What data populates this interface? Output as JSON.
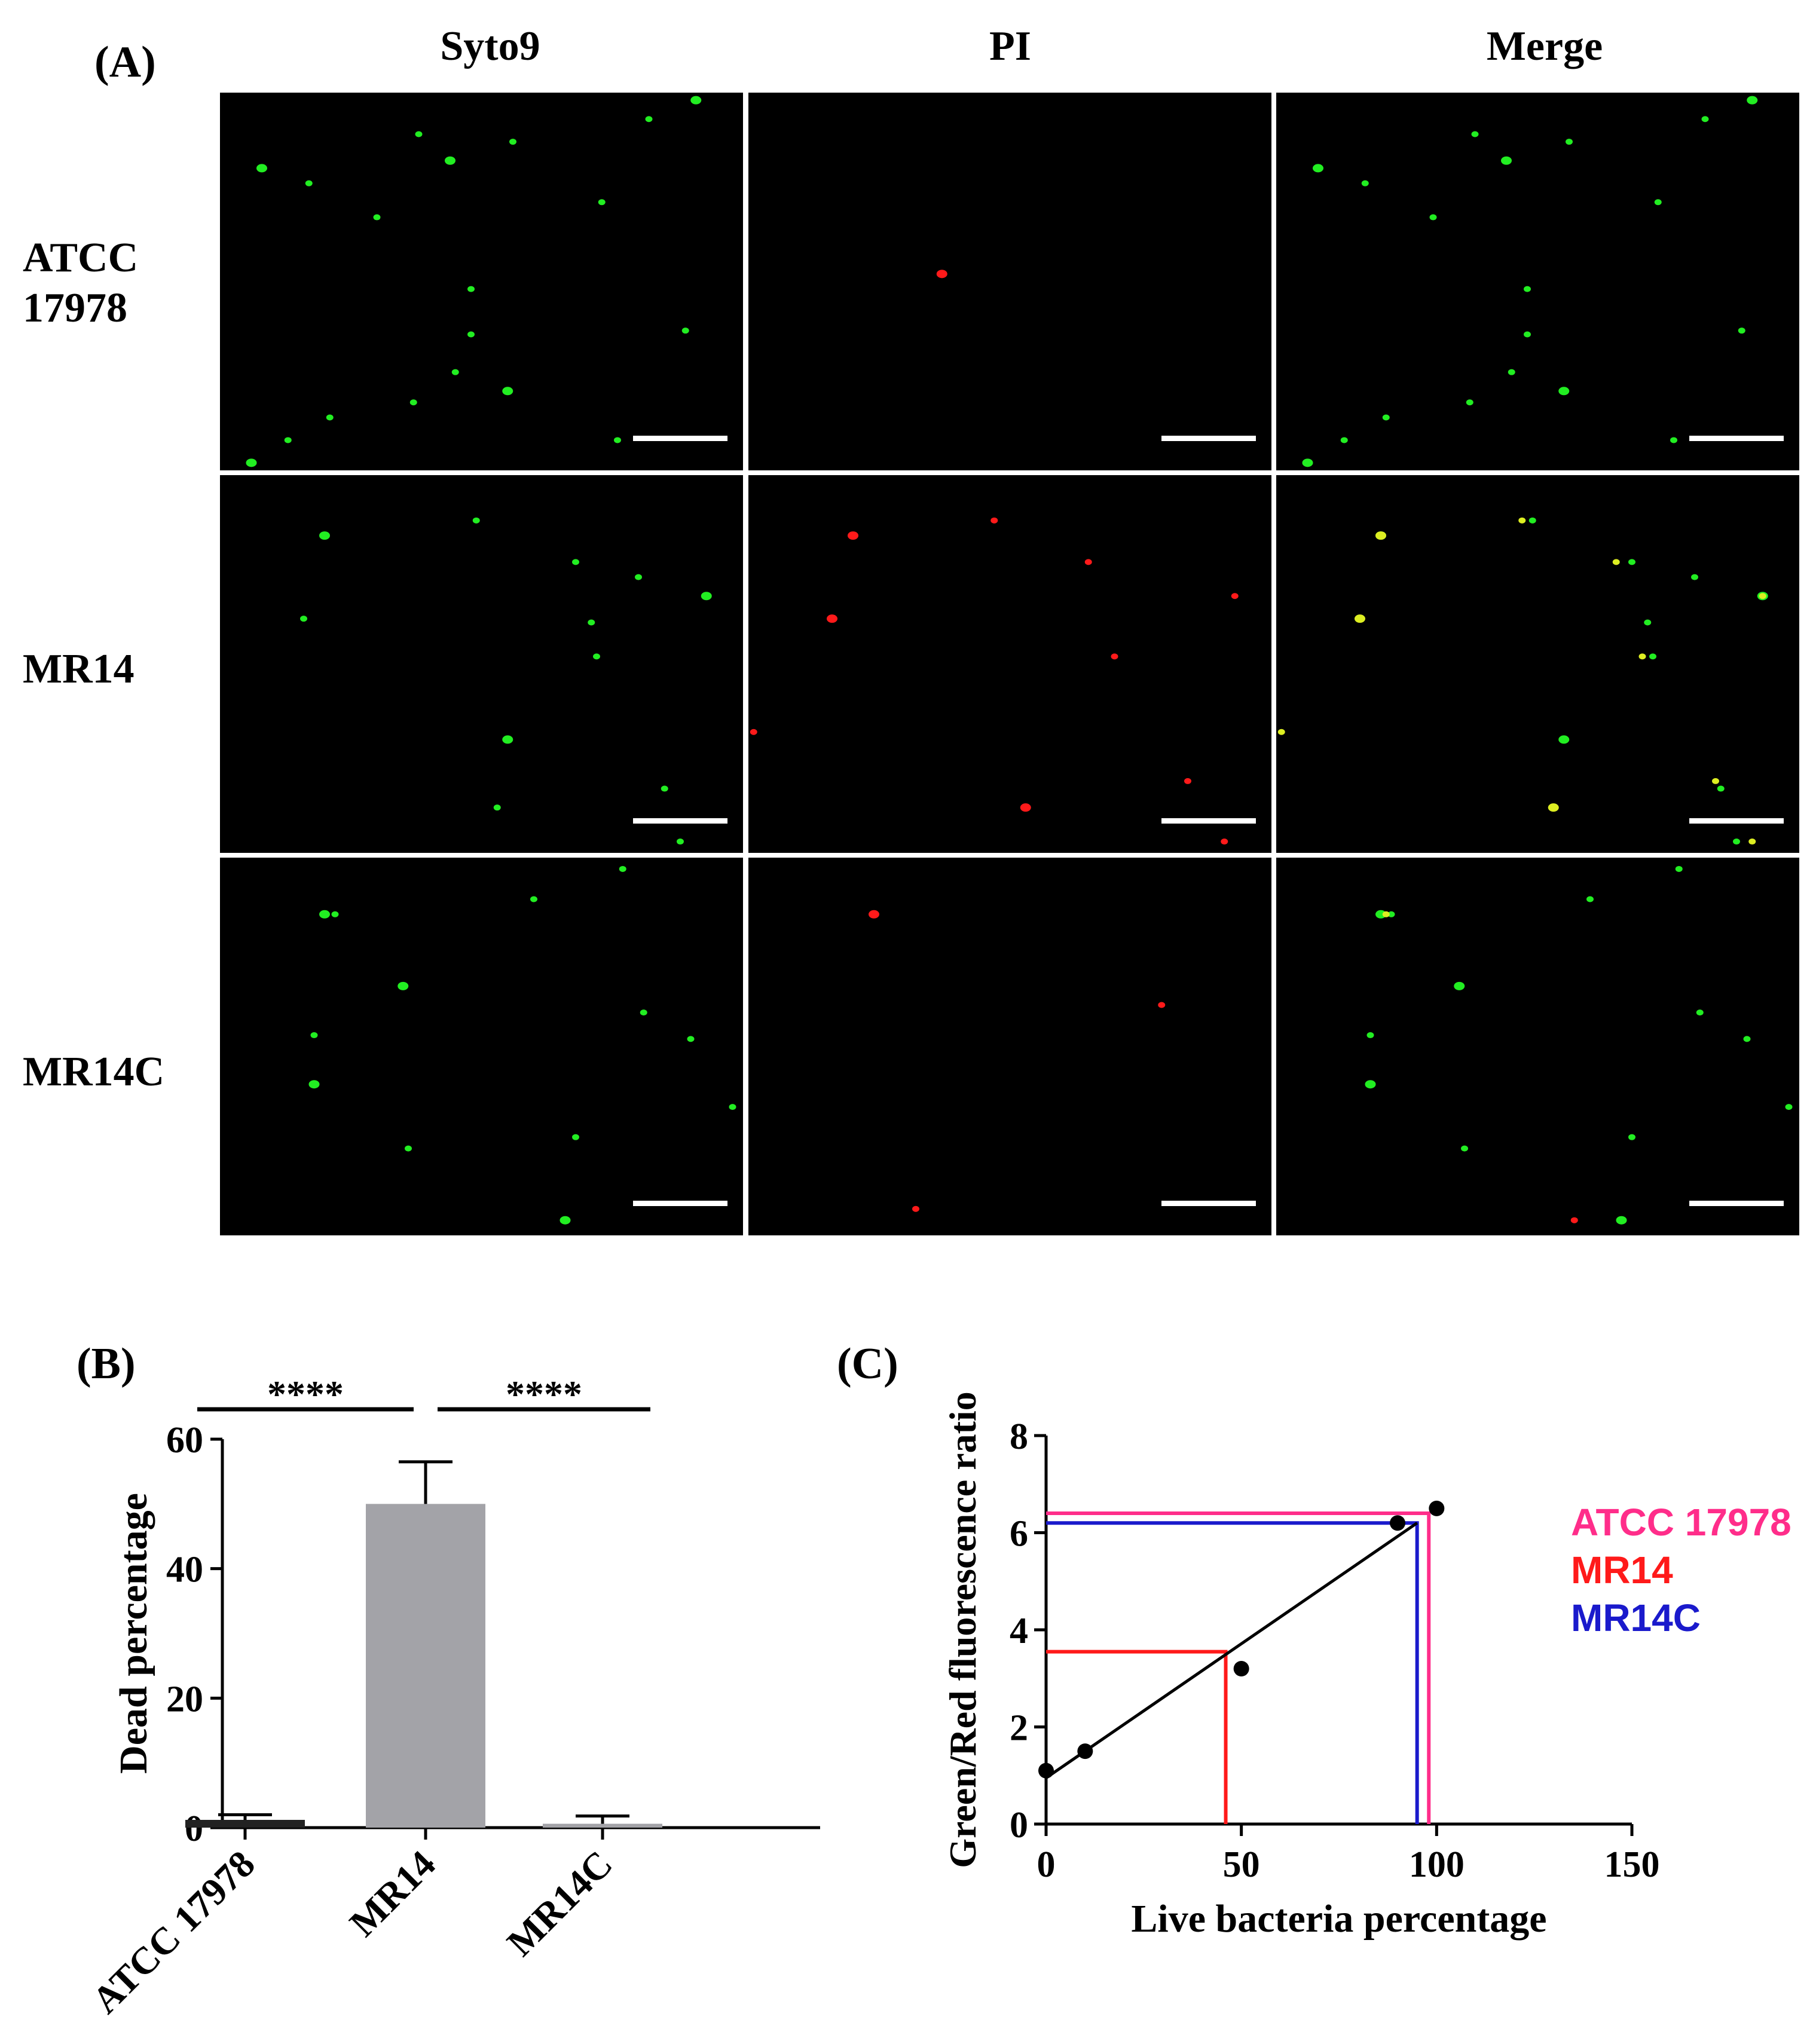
{
  "panel_a": {
    "label": "(A)",
    "columns": [
      "Syto9",
      "PI",
      "Merge"
    ],
    "rows": [
      {
        "label_line1": "ATCC",
        "label_line2": "17978"
      },
      {
        "label_line1": "MR14",
        "label_line2": ""
      },
      {
        "label_line1": "MR14C",
        "label_line2": ""
      }
    ],
    "colors": {
      "live": "#22ee22",
      "dead": "#ff1a1a",
      "merged": "#ddee22",
      "background": "#000000",
      "scale_bar": "#ffffff"
    }
  },
  "panel_b": {
    "label": "(B)",
    "significance": [
      "****",
      "****"
    ]
  },
  "panel_c": {
    "label": "(C)"
  },
  "chart_data": [
    {
      "type": "bar",
      "categories": [
        "ATCC 17978",
        "MR14",
        "MR14C"
      ],
      "values": [
        1.2,
        50.0,
        0.6
      ],
      "errors": [
        0.8,
        6.5,
        1.2
      ],
      "ylabel": "Dead percentage",
      "xlabel": "",
      "ylim": [
        0,
        60
      ],
      "yticks": [
        0,
        20,
        40,
        60
      ],
      "bar_colors": [
        "#222222",
        "#a3a3a8",
        "#a3a3a8"
      ],
      "significance": [
        {
          "from": "ATCC 17978",
          "to": "MR14",
          "label": "****"
        },
        {
          "from": "MR14",
          "to": "MR14C",
          "label": "****"
        }
      ]
    },
    {
      "type": "scatter",
      "x": [
        0,
        10,
        50,
        90,
        100
      ],
      "y": [
        1.1,
        1.5,
        3.2,
        6.2,
        6.5
      ],
      "fit_line": {
        "x": [
          0,
          95
        ],
        "y": [
          0.95,
          6.2
        ]
      },
      "xlabel": "Live bacteria percentage",
      "ylabel": "Green/Red fluorescence ratio",
      "xlim": [
        0,
        150
      ],
      "ylim": [
        0,
        8
      ],
      "xticks": [
        0,
        50,
        100,
        150
      ],
      "yticks": [
        0,
        2,
        4,
        6,
        8
      ],
      "series": [
        {
          "name": "ATCC 17978",
          "color": "#ff2d8a",
          "x": 98,
          "y": 6.4
        },
        {
          "name": "MR14",
          "color": "#ff1a1a",
          "x": 46,
          "y": 3.55
        },
        {
          "name": "MR14C",
          "color": "#1a1acc",
          "x": 95,
          "y": 6.2
        }
      ]
    }
  ]
}
